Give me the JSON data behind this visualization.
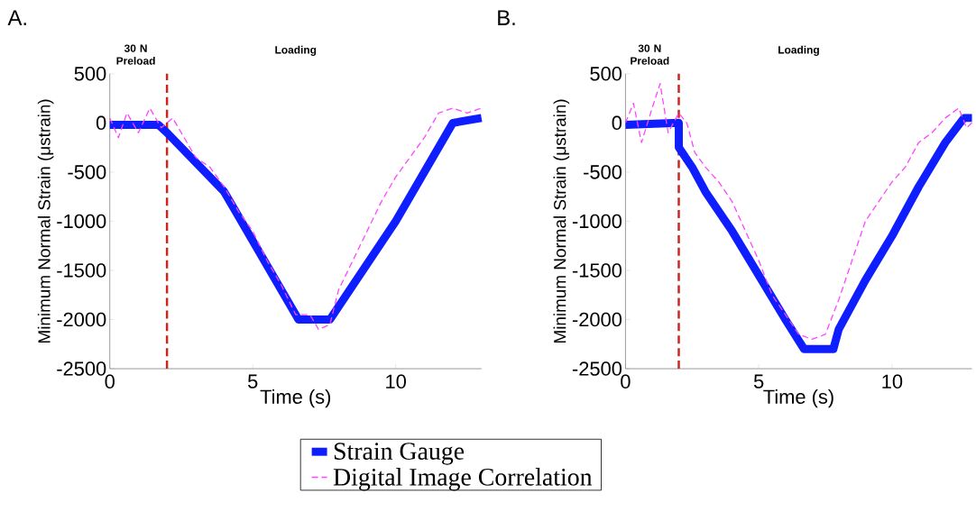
{
  "chart_data": [
    {
      "type": "line",
      "title": "A.",
      "xlabel": "Time (s)",
      "ylabel": "Minimum Normal Strain (μstrain)",
      "xlim": [
        0,
        13
      ],
      "ylim": [
        -2500,
        500
      ],
      "xticks": [
        0,
        5,
        10
      ],
      "yticks": [
        -2500,
        -2000,
        -1500,
        -1000,
        -500,
        0,
        500
      ],
      "marker": "none",
      "ref_lines": [
        {
          "axis": "x",
          "value": 2,
          "color": "#c8281e",
          "line_style": "dashed"
        }
      ],
      "annotations": [
        "30 N Preload",
        "Loading"
      ],
      "series": [
        {
          "color": "#0f1eff",
          "line_style": "solid",
          "x": [
            0,
            1.7,
            2,
            4,
            6.6,
            7.7,
            10,
            12,
            13
          ],
          "values": [
            -20,
            -20,
            -100,
            -700,
            -2000,
            -2000,
            -1000,
            0,
            50
          ]
        },
        {
          "color": "#ff44ff",
          "line_style": "dashed",
          "x": [
            0,
            0.3,
            0.6,
            1,
            1.4,
            1.8,
            2.2,
            2.6,
            3,
            3.5,
            4,
            4.5,
            5,
            5.5,
            6,
            6.5,
            7,
            7.3,
            7.7,
            8,
            8.5,
            9,
            9.5,
            10,
            10.5,
            11,
            11.5,
            12,
            12.5,
            13
          ],
          "values": [
            50,
            -150,
            100,
            -100,
            150,
            -50,
            50,
            -150,
            -350,
            -450,
            -650,
            -900,
            -1100,
            -1400,
            -1650,
            -1950,
            -1950,
            -2100,
            -2050,
            -1700,
            -1400,
            -1100,
            -800,
            -550,
            -350,
            -150,
            100,
            150,
            100,
            150
          ]
        }
      ]
    },
    {
      "type": "line",
      "title": "B.",
      "xlabel": "Time (s)",
      "ylabel": "Minimum Normal Strain (μstrain)",
      "xlim": [
        0,
        13
      ],
      "ylim": [
        -2500,
        500
      ],
      "xticks": [
        0,
        5,
        10
      ],
      "yticks": [
        -2500,
        -2000,
        -1500,
        -1000,
        -500,
        0,
        500
      ],
      "marker": "none",
      "legend": "bottom",
      "ref_lines": [
        {
          "axis": "x",
          "value": 2,
          "color": "#c8281e",
          "line_style": "dashed"
        }
      ],
      "annotations": [
        "30 N Preload",
        "Loading"
      ],
      "series": [
        {
          "name": "Strain Gauge",
          "color": "#0f1eff",
          "line_style": "solid",
          "x": [
            0,
            2,
            2,
            2.5,
            3,
            4,
            5,
            6,
            6.7,
            7.8,
            8,
            9,
            10,
            11,
            12,
            12.7,
            13
          ],
          "values": [
            -20,
            0,
            -250,
            -450,
            -700,
            -1100,
            -1550,
            -2000,
            -2300,
            -2300,
            -2100,
            -1600,
            -1150,
            -650,
            -200,
            50,
            50
          ]
        },
        {
          "name": "Digital Image Correlation",
          "color": "#ff44ff",
          "line_style": "dashed",
          "x": [
            0,
            0.3,
            0.6,
            1,
            1.3,
            1.6,
            2,
            2.3,
            2.6,
            3,
            3.5,
            4,
            4.5,
            5,
            5.5,
            6,
            6.5,
            7,
            7.5,
            8,
            8.5,
            9,
            9.5,
            10,
            10.5,
            11,
            11.5,
            12,
            12.5,
            12.8,
            13
          ],
          "values": [
            0,
            200,
            -200,
            150,
            400,
            -100,
            100,
            0,
            -300,
            -450,
            -600,
            -800,
            -1100,
            -1400,
            -1750,
            -1950,
            -2150,
            -2200,
            -2150,
            -1800,
            -1400,
            -1000,
            -800,
            -600,
            -450,
            -200,
            -100,
            50,
            150,
            -50,
            0
          ]
        }
      ]
    }
  ]
}
